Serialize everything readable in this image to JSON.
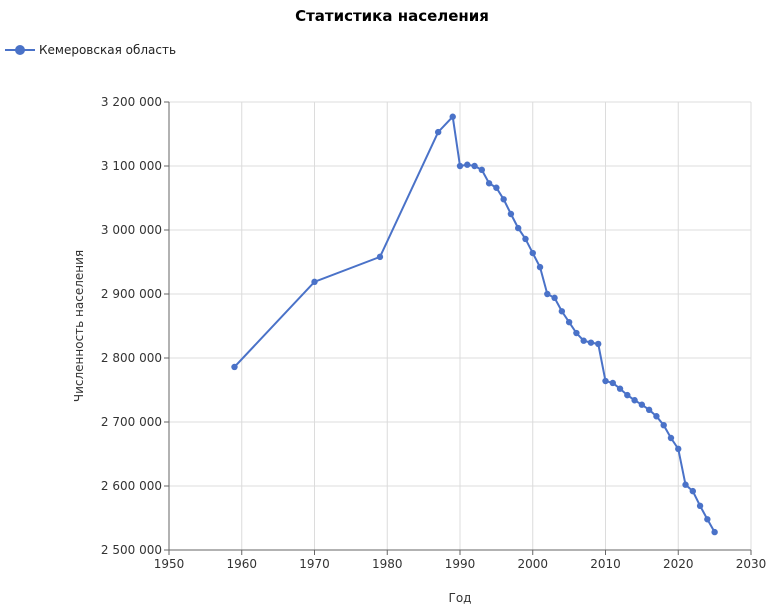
{
  "chart_data": {
    "type": "line",
    "title": "Статистика населения",
    "xlabel": "Год",
    "ylabel": "Численность населения",
    "xlim": [
      1950,
      2030
    ],
    "ylim": [
      2500000,
      3200000
    ],
    "xticks": [
      "1950",
      "1960",
      "1970",
      "1980",
      "1990",
      "2000",
      "2010",
      "2020",
      "2030"
    ],
    "yticks": [
      "2 500 000",
      "2 600 000",
      "2 700 000",
      "2 800 000",
      "2 900 000",
      "3 000 000",
      "3 100 000",
      "3 200 000"
    ],
    "grid": true,
    "legend_position": "top-left",
    "series": [
      {
        "name": "Кемеровская область",
        "color": "#4a72c8",
        "x": [
          1959,
          1970,
          1979,
          1987,
          1989,
          1990,
          1991,
          1992,
          1993,
          1994,
          1995,
          1996,
          1997,
          1998,
          1999,
          2000,
          2001,
          2002,
          2003,
          2004,
          2005,
          2006,
          2007,
          2008,
          2009,
          2010,
          2011,
          2012,
          2013,
          2014,
          2015,
          2016,
          2017,
          2018,
          2019,
          2020,
          2021,
          2022,
          2023,
          2024,
          2025
        ],
        "y": [
          2786000,
          2919000,
          2958000,
          3153000,
          3177000,
          3100000,
          3102000,
          3100000,
          3094000,
          3073000,
          3066000,
          3048000,
          3025000,
          3003000,
          2986000,
          2964000,
          2942000,
          2900000,
          2894000,
          2873000,
          2856000,
          2839000,
          2827000,
          2824000,
          2822000,
          2764000,
          2761000,
          2752000,
          2742000,
          2734000,
          2727000,
          2719000,
          2709000,
          2695000,
          2675000,
          2658000,
          2602000,
          2592000,
          2569000,
          2548000,
          2528000
        ]
      }
    ]
  }
}
